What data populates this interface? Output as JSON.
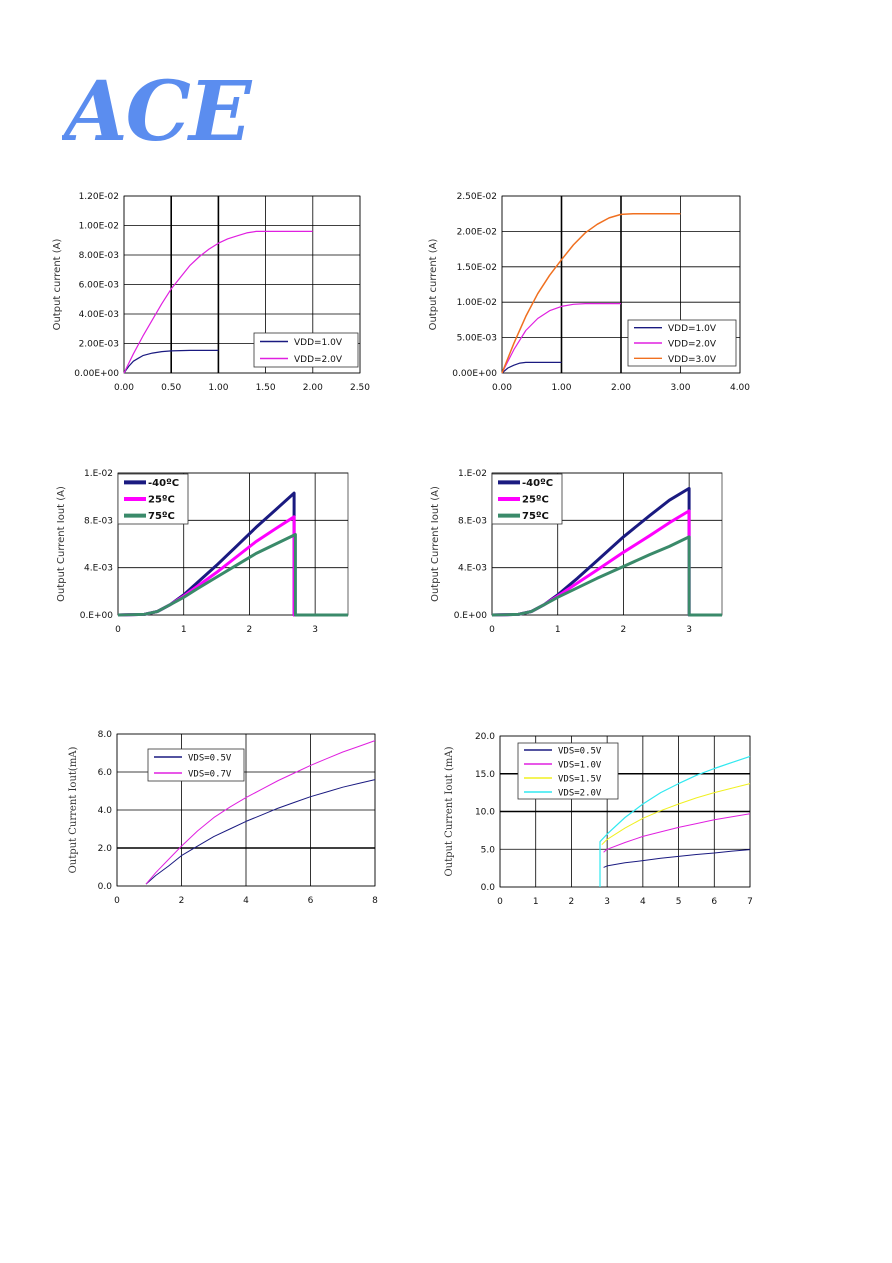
{
  "brand": {
    "logo_text": "ACE",
    "logo_color": "#5b8def"
  },
  "chart_data": [
    {
      "id": "c1",
      "type": "line",
      "ylabel": "Output current (A)",
      "xlabel": "",
      "xlim": [
        0,
        2.5
      ],
      "ylim": [
        0,
        0.012
      ],
      "xticks": [
        0,
        0.5,
        1,
        1.5,
        2,
        2.5
      ],
      "xtick_labels": [
        "0.00",
        "0.50",
        "1.00",
        "1.50",
        "2.00",
        "2.50"
      ],
      "yticks": [
        0,
        0.002,
        0.004,
        0.006,
        0.008,
        0.01,
        0.012
      ],
      "ytick_labels": [
        "0.00E+00",
        "2.00E-03",
        "4.00E-03",
        "6.00E-03",
        "8.00E-03",
        "1.00E-02",
        "1.20E-02"
      ],
      "grid": true,
      "legend": "bottom-right",
      "series": [
        {
          "name": "VDD=1.0V",
          "color": "#1a1a80",
          "width": 1.2,
          "x": [
            0,
            0.05,
            0.1,
            0.15,
            0.2,
            0.3,
            0.4,
            0.5,
            0.6,
            0.7,
            0.8,
            1.0
          ],
          "y": [
            0,
            0.00045,
            0.0008,
            0.001,
            0.00118,
            0.00135,
            0.00145,
            0.0015,
            0.00152,
            0.00153,
            0.00153,
            0.00153
          ]
        },
        {
          "name": "VDD=2.0V",
          "color": "#e020e0",
          "width": 1.2,
          "x": [
            0,
            0.1,
            0.2,
            0.3,
            0.4,
            0.5,
            0.6,
            0.7,
            0.8,
            0.9,
            1.0,
            1.1,
            1.2,
            1.3,
            1.4,
            1.5,
            1.7,
            2.0
          ],
          "y": [
            0,
            0.0013,
            0.0025,
            0.0036,
            0.0047,
            0.0057,
            0.0065,
            0.0073,
            0.0079,
            0.0084,
            0.0088,
            0.0091,
            0.0093,
            0.0095,
            0.0096,
            0.0096,
            0.0096,
            0.0096
          ]
        }
      ]
    },
    {
      "id": "c2",
      "type": "line",
      "ylabel": "Output current (A)",
      "xlabel": "",
      "xlim": [
        0,
        4
      ],
      "ylim": [
        0,
        0.025
      ],
      "xticks": [
        0,
        1,
        2,
        3,
        4
      ],
      "xtick_labels": [
        "0.00",
        "1.00",
        "2.00",
        "3.00",
        "4.00"
      ],
      "yticks": [
        0,
        0.005,
        0.01,
        0.015,
        0.02,
        0.025
      ],
      "ytick_labels": [
        "0.00E+00",
        "5.00E-03",
        "1.00E-02",
        "1.50E-02",
        "2.00E-02",
        "2.50E-02"
      ],
      "grid": true,
      "legend": "bottom-right",
      "series": [
        {
          "name": "VDD=1.0V",
          "color": "#1a1a80",
          "width": 1.2,
          "x": [
            0,
            0.1,
            0.2,
            0.3,
            0.4,
            0.5,
            0.7,
            1.0
          ],
          "y": [
            0,
            0.0007,
            0.0011,
            0.0014,
            0.0015,
            0.0015,
            0.0015,
            0.0015
          ]
        },
        {
          "name": "VDD=2.0V",
          "color": "#e020e0",
          "width": 1.2,
          "x": [
            0,
            0.2,
            0.4,
            0.6,
            0.8,
            1.0,
            1.2,
            1.4,
            1.6,
            2.0
          ],
          "y": [
            0,
            0.0033,
            0.006,
            0.0077,
            0.0088,
            0.0094,
            0.0097,
            0.0098,
            0.0098,
            0.0098
          ]
        },
        {
          "name": "VDD=3.0V",
          "color": "#f07020",
          "width": 1.5,
          "x": [
            0,
            0.2,
            0.4,
            0.6,
            0.8,
            1.0,
            1.2,
            1.4,
            1.6,
            1.8,
            2.0,
            2.2,
            2.5,
            3.0
          ],
          "y": [
            0,
            0.0042,
            0.008,
            0.0112,
            0.0138,
            0.016,
            0.0181,
            0.0198,
            0.021,
            0.0219,
            0.0224,
            0.0225,
            0.0225,
            0.0225
          ]
        }
      ]
    },
    {
      "id": "c3",
      "type": "line",
      "ylabel": "Output Current Iout (A)",
      "xlabel": "",
      "xlim": [
        0,
        3.5
      ],
      "ylim": [
        0,
        0.012
      ],
      "xticks": [
        0,
        1,
        2,
        3
      ],
      "xtick_labels": [
        "0",
        "1",
        "2",
        "3"
      ],
      "yticks": [
        0,
        0.004,
        0.008,
        0.012
      ],
      "ytick_labels": [
        "0.E+00",
        "4.E-03",
        "8.E-03",
        "1.E-02"
      ],
      "grid": true,
      "legend": "top-left",
      "series": [
        {
          "name": "-40ºC",
          "color": "#1a1a80",
          "width": 3,
          "x": [
            0,
            0.4,
            0.6,
            0.8,
            1.0,
            1.2,
            1.5,
            1.8,
            2.1,
            2.4,
            2.68,
            2.68,
            3.5
          ],
          "y": [
            0,
            5e-05,
            0.0003,
            0.0009,
            0.0017,
            0.0027,
            0.0042,
            0.0058,
            0.0074,
            0.0089,
            0.0103,
            0,
            0
          ]
        },
        {
          "name": "25ºC",
          "color": "#ff00ff",
          "width": 3,
          "x": [
            0,
            0.4,
            0.6,
            0.8,
            1.0,
            1.2,
            1.5,
            1.8,
            2.1,
            2.4,
            2.68,
            2.68,
            3.5
          ],
          "y": [
            0,
            5e-05,
            0.0003,
            0.0009,
            0.0016,
            0.0024,
            0.0036,
            0.0049,
            0.0062,
            0.0073,
            0.0083,
            0,
            0
          ]
        },
        {
          "name": "75ºC",
          "color": "#3a8a6a",
          "width": 3,
          "x": [
            0,
            0.4,
            0.6,
            0.8,
            1.0,
            1.2,
            1.5,
            1.8,
            2.1,
            2.4,
            2.7,
            2.7,
            3.5
          ],
          "y": [
            0,
            5e-05,
            0.0003,
            0.0009,
            0.0015,
            0.0022,
            0.0032,
            0.0042,
            0.0052,
            0.006,
            0.0068,
            0,
            0
          ]
        }
      ]
    },
    {
      "id": "c4",
      "type": "line",
      "ylabel": "Output Current Iout (A)",
      "xlabel": "",
      "xlim": [
        0,
        3.5
      ],
      "ylim": [
        0,
        0.012
      ],
      "xticks": [
        0,
        1,
        2,
        3
      ],
      "xtick_labels": [
        "0",
        "1",
        "2",
        "3"
      ],
      "yticks": [
        0,
        0.004,
        0.008,
        0.012
      ],
      "ytick_labels": [
        "0.E+00",
        "4.E-03",
        "8.E-03",
        "1.E-02"
      ],
      "grid": true,
      "legend": "top-left",
      "series": [
        {
          "name": "-40ºC",
          "color": "#1a1a80",
          "width": 3,
          "x": [
            0,
            0.4,
            0.6,
            0.8,
            1.0,
            1.3,
            1.6,
            2.0,
            2.4,
            2.7,
            3.0,
            3.0,
            3.5
          ],
          "y": [
            0,
            5e-05,
            0.0003,
            0.0009,
            0.0017,
            0.0031,
            0.0046,
            0.0066,
            0.0084,
            0.0097,
            0.0107,
            0,
            0
          ]
        },
        {
          "name": "25ºC",
          "color": "#ff00ff",
          "width": 3,
          "x": [
            0,
            0.4,
            0.6,
            0.8,
            1.0,
            1.3,
            1.6,
            2.0,
            2.4,
            2.7,
            3.0,
            3.0,
            3.5
          ],
          "y": [
            0,
            5e-05,
            0.0003,
            0.0009,
            0.0016,
            0.0027,
            0.0038,
            0.0053,
            0.0067,
            0.0078,
            0.0088,
            0,
            0
          ]
        },
        {
          "name": "75ºC",
          "color": "#3a8a6a",
          "width": 3,
          "x": [
            0,
            0.4,
            0.6,
            0.8,
            1.0,
            1.3,
            1.6,
            2.0,
            2.4,
            2.7,
            3.0,
            3.0,
            3.5
          ],
          "y": [
            0,
            5e-05,
            0.0003,
            0.0009,
            0.0015,
            0.0023,
            0.0031,
            0.0041,
            0.0051,
            0.0058,
            0.0066,
            0,
            0
          ]
        }
      ]
    },
    {
      "id": "c5",
      "type": "line",
      "ylabel": "Output Current Iout(mA)",
      "xlabel": "",
      "xlim": [
        0,
        8
      ],
      "ylim": [
        0,
        8
      ],
      "xticks": [
        0,
        2,
        4,
        6,
        8
      ],
      "xtick_labels": [
        "0",
        "2",
        "4",
        "6",
        "8"
      ],
      "yticks": [
        0,
        2,
        4,
        6,
        8
      ],
      "ytick_labels": [
        "0.0",
        "2.0",
        "4.0",
        "6.0",
        "8.0"
      ],
      "grid": true,
      "legend": "top-left",
      "series": [
        {
          "name": "VDS=0.5V",
          "color": "#1a1a80",
          "width": 1,
          "x": [
            0.9,
            1.2,
            1.6,
            2.0,
            2.5,
            3.0,
            3.5,
            4.0,
            4.5,
            5.0,
            5.5,
            6.0,
            6.5,
            7.0,
            7.5,
            8.0
          ],
          "y": [
            0.1,
            0.55,
            1.05,
            1.6,
            2.1,
            2.6,
            3.0,
            3.4,
            3.75,
            4.1,
            4.4,
            4.7,
            4.95,
            5.2,
            5.4,
            5.6
          ]
        },
        {
          "name": "VDS=0.7V",
          "color": "#e020e0",
          "width": 1,
          "x": [
            0.9,
            1.2,
            1.6,
            2.0,
            2.5,
            3.0,
            3.5,
            4.0,
            4.5,
            5.0,
            5.5,
            6.0,
            6.5,
            7.0,
            7.5,
            8.0
          ],
          "y": [
            0.1,
            0.7,
            1.4,
            2.1,
            2.9,
            3.6,
            4.15,
            4.65,
            5.1,
            5.55,
            5.95,
            6.35,
            6.7,
            7.05,
            7.35,
            7.65
          ]
        }
      ]
    },
    {
      "id": "c6",
      "type": "line",
      "ylabel": "Output Current Iout (mA)",
      "xlabel": "",
      "xlim": [
        0,
        7
      ],
      "ylim": [
        0,
        20
      ],
      "xticks": [
        0,
        1,
        2,
        3,
        4,
        5,
        6,
        7
      ],
      "xtick_labels": [
        "0",
        "1",
        "2",
        "3",
        "4",
        "5",
        "6",
        "7"
      ],
      "yticks": [
        0,
        5,
        10,
        15,
        20
      ],
      "ytick_labels": [
        "0.0",
        "5.0",
        "10.0",
        "15.0",
        "20.0"
      ],
      "grid": true,
      "legend": "top-left",
      "series": [
        {
          "name": "VDS=0.5V",
          "color": "#1a1a80",
          "width": 1,
          "x": [
            2.9,
            3.0,
            3.5,
            4.0,
            4.5,
            5.0,
            5.5,
            6.0,
            6.5,
            7.0
          ],
          "y": [
            2.6,
            2.8,
            3.2,
            3.5,
            3.8,
            4.05,
            4.3,
            4.5,
            4.75,
            4.95
          ]
        },
        {
          "name": "VDS=1.0V",
          "color": "#e020e0",
          "width": 1,
          "x": [
            2.9,
            3.0,
            3.5,
            4.0,
            4.5,
            5.0,
            5.5,
            6.0,
            6.5,
            7.0
          ],
          "y": [
            4.6,
            5.0,
            5.9,
            6.7,
            7.3,
            7.9,
            8.4,
            8.9,
            9.3,
            9.7
          ]
        },
        {
          "name": "VDS=1.5V",
          "color": "#f0f020",
          "width": 1,
          "x": [
            2.85,
            3.0,
            3.5,
            4.0,
            4.5,
            5.0,
            5.5,
            6.0,
            6.5,
            7.0
          ],
          "y": [
            5.6,
            6.3,
            7.8,
            9.1,
            10.1,
            11.0,
            11.8,
            12.5,
            13.1,
            13.7
          ]
        },
        {
          "name": "VDS=2.0V",
          "color": "#30e8f0",
          "width": 1.2,
          "x": [
            2.8,
            2.8,
            3.0,
            3.5,
            4.0,
            4.5,
            5.0,
            5.5,
            6.0,
            6.5,
            7.0
          ],
          "y": [
            0,
            6.0,
            7.0,
            9.2,
            11.0,
            12.5,
            13.7,
            14.8,
            15.7,
            16.5,
            17.3
          ]
        }
      ]
    }
  ]
}
